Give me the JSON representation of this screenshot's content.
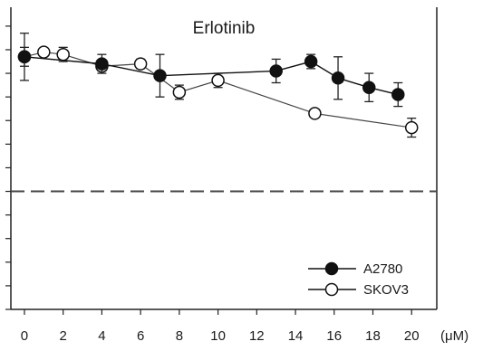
{
  "chart_data": {
    "type": "line",
    "title": "Erlotinib",
    "xlabel": "",
    "ylabel": "",
    "x_unit": "(μM)",
    "x_ticks": [
      0,
      2,
      4,
      6,
      8,
      10,
      12,
      14,
      16,
      18,
      20
    ],
    "xlim": [
      -0.7,
      21.3
    ],
    "ylim": [
      0,
      1.28
    ],
    "reference_line": {
      "y": 0.5,
      "style": "dashed"
    },
    "grid": false,
    "legend_position": "bottom-right",
    "series": [
      {
        "name": "A2780",
        "marker": "filled-circle",
        "x": [
          0,
          4,
          7,
          13,
          14.8,
          16.2,
          17.8,
          19.3
        ],
        "y": [
          1.07,
          1.04,
          0.99,
          1.01,
          1.05,
          0.98,
          0.94,
          0.91
        ],
        "err": [
          0.1,
          0.04,
          0.09,
          0.05,
          0.03,
          0.09,
          0.06,
          0.05
        ]
      },
      {
        "name": "SKOV3",
        "marker": "open-circle",
        "x": [
          0,
          1,
          2,
          4,
          6,
          8,
          10,
          15,
          20
        ],
        "y": [
          1.07,
          1.09,
          1.08,
          1.03,
          1.04,
          0.92,
          0.97,
          0.83,
          0.77
        ],
        "err": [
          0.04,
          0.0,
          0.03,
          0.02,
          0.02,
          0.03,
          0.03,
          0.0,
          0.04
        ]
      }
    ]
  }
}
